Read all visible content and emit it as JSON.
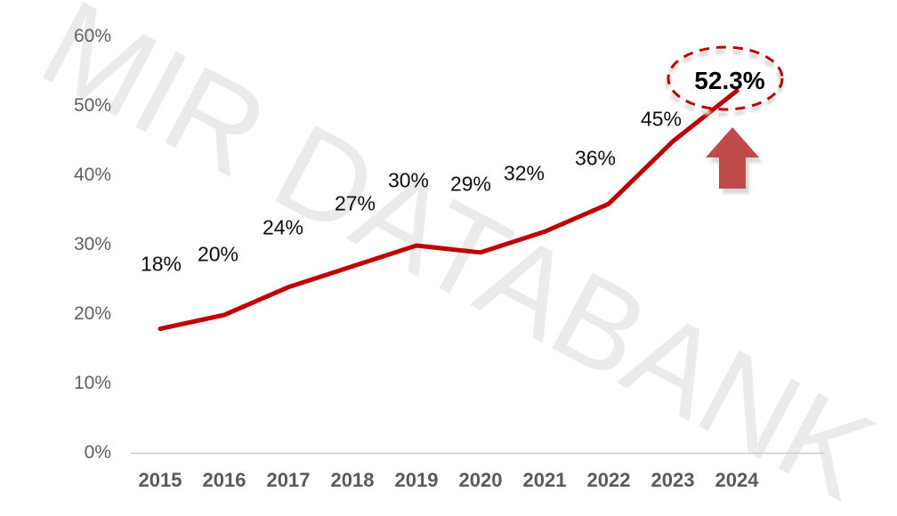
{
  "watermark": "MIR DATABANK",
  "chart_data": {
    "type": "line",
    "title": "",
    "xlabel": "",
    "ylabel": "",
    "x": [
      "2015",
      "2016",
      "2017",
      "2018",
      "2019",
      "2020",
      "2021",
      "2022",
      "2023",
      "2024"
    ],
    "values": [
      18,
      20,
      24,
      27,
      30,
      29,
      32,
      36,
      45,
      52.3
    ],
    "point_labels": [
      "18%",
      "20%",
      "24%",
      "27%",
      "30%",
      "29%",
      "32%",
      "36%",
      "45%",
      "52.3%"
    ],
    "y_ticks": [
      "0%",
      "10%",
      "20%",
      "30%",
      "40%",
      "50%",
      "60%"
    ],
    "y_tick_values": [
      0,
      10,
      20,
      30,
      40,
      50,
      60
    ],
    "ylim": [
      0,
      60
    ],
    "grid": false,
    "legend": null,
    "line_color": "#C00000",
    "highlight": {
      "index": 9,
      "label": "52.3%",
      "annotations": [
        "dashed-ellipse",
        "up-arrow"
      ],
      "ellipse_color": "#C00000",
      "arrow_color": "#BE4B48"
    }
  },
  "colors": {
    "background": "#FFFFFF",
    "axis_line": "#CCCCCC",
    "x_tick_text": "#595959",
    "y_tick_text": "#606060",
    "data_label_text": "#0D0D0D",
    "highlight_label_text": "#000000",
    "watermark_text": "#EBEBEB",
    "annotation_shadow": "#D9D9D9"
  }
}
